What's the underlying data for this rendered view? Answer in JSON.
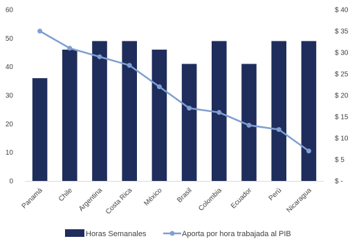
{
  "chart_data": {
    "type": "bar",
    "categories": [
      "Panamá",
      "Chile",
      "Argentina",
      "Costa Rica",
      "México",
      "Brasil",
      "Colombia",
      "Ecuador",
      "Perú",
      "Nicaragua"
    ],
    "series": [
      {
        "name": "Horas Semanales",
        "type": "bar",
        "axis": "left",
        "color": "#1f2d5c",
        "values": [
          36,
          46,
          49,
          49,
          46,
          41,
          49,
          41,
          49,
          49
        ]
      },
      {
        "name": "Aporta por hora trabajada al PIB",
        "type": "line",
        "axis": "right",
        "color": "#7f9fd2",
        "values": [
          35,
          31,
          29,
          27,
          22,
          17,
          16,
          13,
          12,
          7
        ]
      }
    ],
    "y_left": {
      "min": 0,
      "max": 60,
      "ticks": [
        "0",
        "10",
        "20",
        "30",
        "40",
        "50",
        "60"
      ]
    },
    "y_right": {
      "min": 0,
      "max": 40,
      "ticks": [
        "$ -",
        "$ 5",
        "$ 10",
        "$ 15",
        "$ 20",
        "$ 25",
        "$ 30",
        "$ 35",
        "$ 40"
      ]
    },
    "grid": false,
    "legend_position": "bottom"
  }
}
